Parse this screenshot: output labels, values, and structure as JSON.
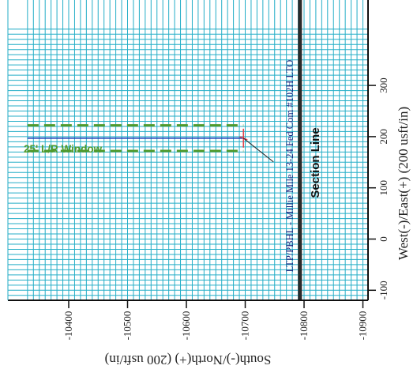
{
  "chart_data": {
    "type": "line",
    "x_axis": {
      "label": "South(-)/North(+) (200 usft/in)",
      "ticks": [
        -10400,
        -10500,
        -10600,
        -10700,
        -10800,
        -10900
      ],
      "tick_labels": [
        "-10400",
        "-10500",
        "-10600",
        "-10700",
        "-10800",
        "-10900"
      ],
      "range": [
        -10330,
        -10930
      ],
      "direction": "reversed"
    },
    "y_axis": {
      "label": "West(-)/East(+) (200 usft/in)",
      "ticks": [
        -100,
        0,
        100,
        200,
        300
      ],
      "tick_labels": [
        "-100",
        "0",
        "100",
        "200",
        "300"
      ],
      "range": [
        -125,
        410
      ],
      "position": "right"
    },
    "grid": true,
    "series": [
      {
        "role": "wellbore",
        "color": "#1c3fb8",
        "points": [
          [
            -10330,
            197
          ],
          [
            -10697,
            197
          ]
        ]
      },
      {
        "role": "lr-window-upper",
        "color": "#4f9a2c",
        "style": "dashed",
        "points": [
          [
            -10330,
            222
          ],
          [
            -10697,
            222
          ]
        ]
      },
      {
        "role": "lr-window-lower",
        "color": "#4f9a2c",
        "style": "dashed",
        "points": [
          [
            -10330,
            172
          ],
          [
            -10697,
            172
          ]
        ]
      }
    ],
    "vertical_lines": [
      {
        "role": "section-line",
        "x": -10793,
        "color": "#2b2b2b"
      }
    ],
    "markers": [
      {
        "role": "ltp-pbhl",
        "x": -10697,
        "y": 197,
        "color": "#e0404a"
      }
    ],
    "annotations": {
      "window_label": "25' L/R Window",
      "section_label": "Section Line",
      "well_label": "LTP/PBHL - Millie Mile 13-24 Fed Com #102H LTO"
    },
    "colors": {
      "grid_minor": "#24aec7",
      "grid_major": "#1a1a1a",
      "axis": "#111111",
      "window": "#4f9a2c",
      "wellbore": "#1c3fb8",
      "marker": "#e0404a",
      "section": "#2b2b2b"
    }
  }
}
